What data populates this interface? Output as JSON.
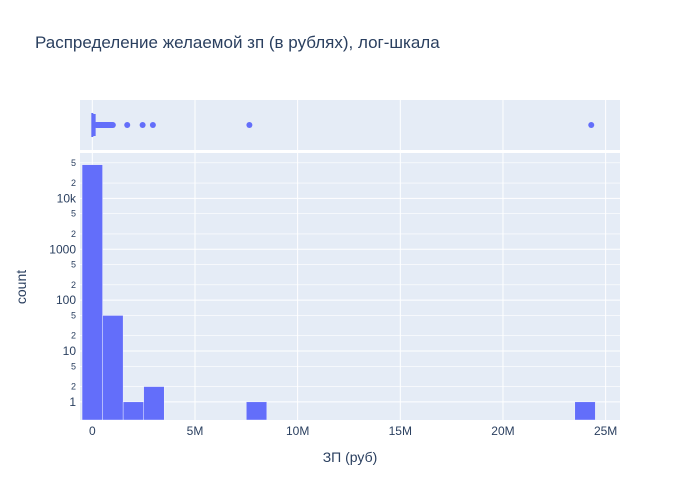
{
  "title": "Распределение желаемой зп (в рублях), лог-шкала",
  "colors": {
    "plot_bg": "#e5ecf6",
    "grid": "#ffffff",
    "bar": "#636efa",
    "text": "#2a3f5f"
  },
  "chart_data": {
    "type": "bar",
    "subtype": "histogram with marginal box plot",
    "xlabel": "ЗП (руб)",
    "ylabel": "count",
    "x_unit": "rubles",
    "xlim": [
      -600000,
      25700000
    ],
    "x_ticks": [
      {
        "value": 0,
        "label": "0"
      },
      {
        "value": 5000000,
        "label": "5M"
      },
      {
        "value": 10000000,
        "label": "10M"
      },
      {
        "value": 15000000,
        "label": "15M"
      },
      {
        "value": 20000000,
        "label": "20M"
      },
      {
        "value": 25000000,
        "label": "25M"
      }
    ],
    "y_scale": "log",
    "y_major_ticks": [
      {
        "value": 1,
        "label": "1"
      },
      {
        "value": 10,
        "label": "10"
      },
      {
        "value": 100,
        "label": "100"
      },
      {
        "value": 1000,
        "label": "1000"
      },
      {
        "value": 10000,
        "label": "10k"
      }
    ],
    "y_minor_ticks": [
      {
        "value": 2,
        "label": "2"
      },
      {
        "value": 5,
        "label": "5"
      },
      {
        "value": 20,
        "label": "2"
      },
      {
        "value": 50,
        "label": "5"
      },
      {
        "value": 200,
        "label": "2"
      },
      {
        "value": 500,
        "label": "5"
      },
      {
        "value": 2000,
        "label": "2"
      },
      {
        "value": 5000,
        "label": "5"
      },
      {
        "value": 20000,
        "label": "2"
      },
      {
        "value": 50000,
        "label": "5"
      }
    ],
    "bins": [
      {
        "x0": -500000,
        "x1": 500000,
        "count": 46000
      },
      {
        "x0": 500000,
        "x1": 1500000,
        "count": 50
      },
      {
        "x0": 1500000,
        "x1": 2500000,
        "count": 1
      },
      {
        "x0": 2500000,
        "x1": 3500000,
        "count": 2
      },
      {
        "x0": 7500000,
        "x1": 8500000,
        "count": 1
      },
      {
        "x0": 23500000,
        "x1": 24500000,
        "count": 1
      }
    ],
    "box": {
      "min": 0,
      "q1": 40000,
      "median": 60000,
      "q3": 90000,
      "whisker_high": 200000,
      "outliers_dense_range": [
        200000,
        1000000
      ],
      "outliers": [
        1700000,
        2450000,
        2950000,
        7650000,
        24300000
      ]
    },
    "grid": true
  }
}
